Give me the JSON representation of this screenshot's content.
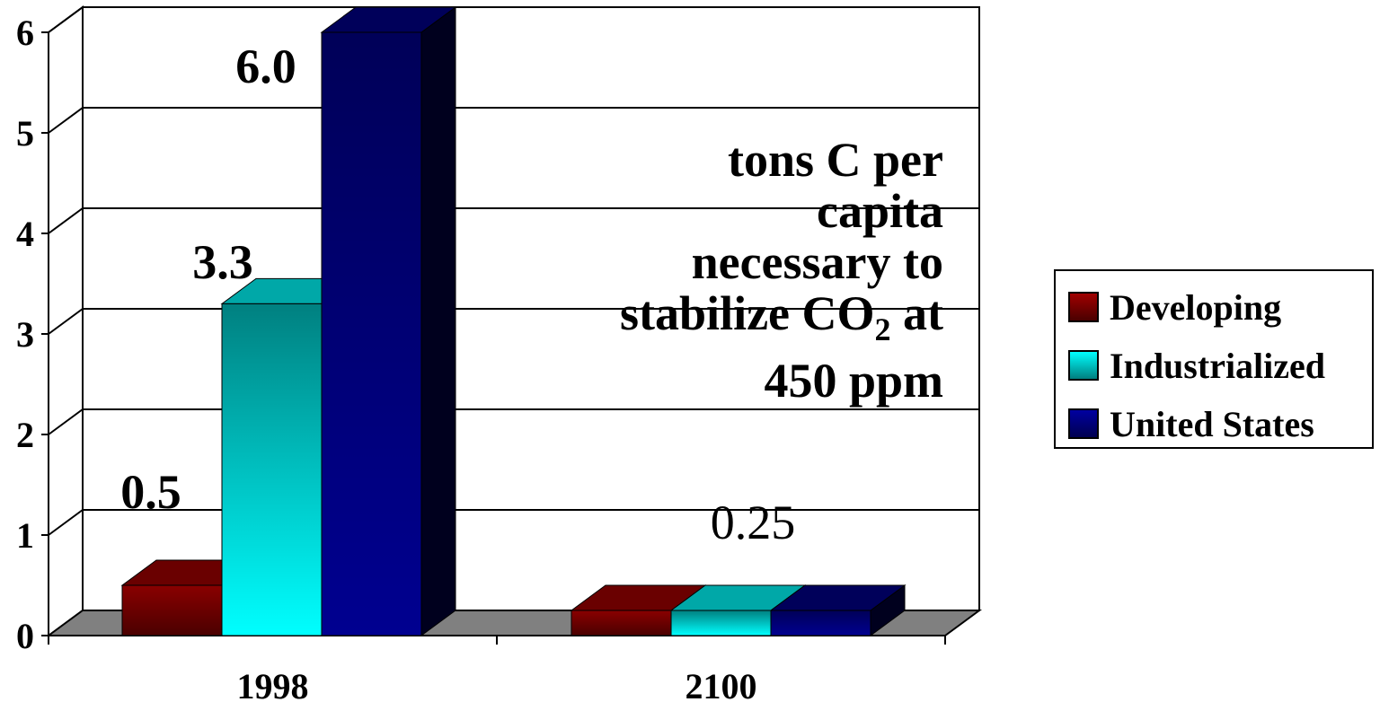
{
  "chart_data": {
    "type": "bar",
    "categories": [
      "1998",
      "2100"
    ],
    "series": [
      {
        "name": "Developing",
        "values": [
          0.5,
          0.25
        ],
        "color": "#7a0000",
        "labels": [
          "0.5",
          ""
        ]
      },
      {
        "name": "Industrialized",
        "values": [
          3.3,
          0.25
        ],
        "color": "#00ffff",
        "labels": [
          "3.3",
          "0.25"
        ]
      },
      {
        "name": "United States",
        "values": [
          6.0,
          0.25
        ],
        "color": "#00007a",
        "labels": [
          "6.0",
          ""
        ]
      }
    ],
    "ylim": [
      0,
      6
    ],
    "yticks": [
      "0",
      "1",
      "2",
      "3",
      "4",
      "5",
      "6"
    ],
    "annotation": {
      "line1": "tons C per",
      "line2": "capita",
      "line3": "necessary to",
      "line4a": "stabilize CO",
      "line4sub": "2",
      "line4b": " at",
      "line5": "450 ppm"
    },
    "legend_position": "right",
    "grid": true,
    "style": "3d-bar"
  }
}
